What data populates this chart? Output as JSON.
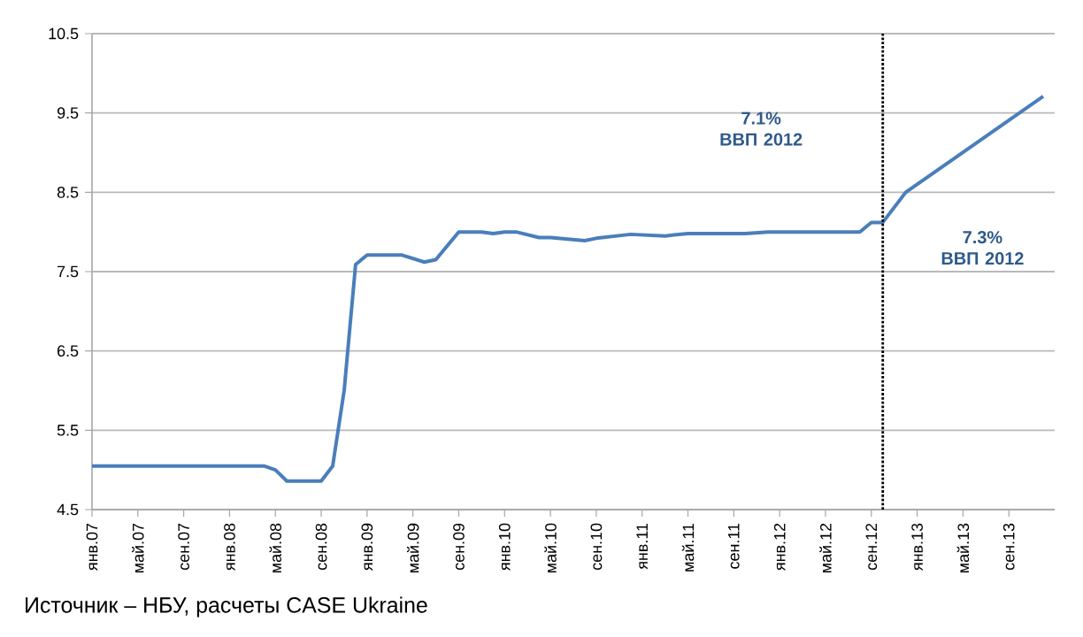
{
  "chart_data": {
    "type": "line",
    "x": [
      "2007-01",
      "2008-04",
      "2008-05",
      "2008-06",
      "2008-09",
      "2008-10",
      "2008-11",
      "2008-12",
      "2009-01",
      "2009-04",
      "2009-06",
      "2009-07",
      "2009-09",
      "2009-11",
      "2009-12",
      "2010-01",
      "2010-02",
      "2010-04",
      "2010-05",
      "2010-08",
      "2010-09",
      "2010-12",
      "2011-03",
      "2011-05",
      "2011-10",
      "2011-12",
      "2012-08",
      "2012-09",
      "2012-10",
      "2012-12",
      "2013-12"
    ],
    "series": [
      {
        "color": "#4a7ebb",
        "values": [
          5.05,
          5.05,
          5.0,
          4.86,
          4.86,
          5.05,
          6.0,
          7.59,
          7.71,
          7.71,
          7.62,
          7.65,
          8.0,
          8.0,
          7.98,
          8.0,
          8.0,
          7.93,
          7.93,
          7.89,
          7.92,
          7.97,
          7.95,
          7.98,
          7.98,
          8.0,
          8.0,
          8.12,
          8.12,
          8.5,
          9.71
        ]
      }
    ],
    "xlim": [
      "2007-01",
      "2014-01"
    ],
    "xticks": [
      {
        "value": "2007-01",
        "label": "янв.07"
      },
      {
        "value": "2007-05",
        "label": "май.07"
      },
      {
        "value": "2007-09",
        "label": "сен.07"
      },
      {
        "value": "2008-01",
        "label": "янв.08"
      },
      {
        "value": "2008-05",
        "label": "май.08"
      },
      {
        "value": "2008-09",
        "label": "сен.08"
      },
      {
        "value": "2009-01",
        "label": "янв.09"
      },
      {
        "value": "2009-05",
        "label": "май.09"
      },
      {
        "value": "2009-09",
        "label": "сен.09"
      },
      {
        "value": "2010-01",
        "label": "янв.10"
      },
      {
        "value": "2010-05",
        "label": "май.10"
      },
      {
        "value": "2010-09",
        "label": "сен.10"
      },
      {
        "value": "2011-01",
        "label": "янв.11"
      },
      {
        "value": "2011-05",
        "label": "май.11"
      },
      {
        "value": "2011-09",
        "label": "сен.11"
      },
      {
        "value": "2012-01",
        "label": "янв.12"
      },
      {
        "value": "2012-05",
        "label": "май.12"
      },
      {
        "value": "2012-09",
        "label": "сен.12"
      },
      {
        "value": "2013-01",
        "label": "янв.13"
      },
      {
        "value": "2013-05",
        "label": "май.13"
      },
      {
        "value": "2013-09",
        "label": "сен.13"
      }
    ],
    "ylim": [
      4.5,
      10.5
    ],
    "yticks": [
      4.5,
      5.5,
      6.5,
      7.5,
      8.5,
      9.5,
      10.5
    ],
    "grid": "y",
    "ref_lines": [
      {
        "axis": "x",
        "value": "2012-10",
        "color": "#000000",
        "line_style": "dotted"
      }
    ],
    "annotations": [
      "7.1% ВВП 2012",
      "7.3% ВВП 2012",
      "Источник – НБУ, расчеты CASE Ukraine"
    ]
  }
}
